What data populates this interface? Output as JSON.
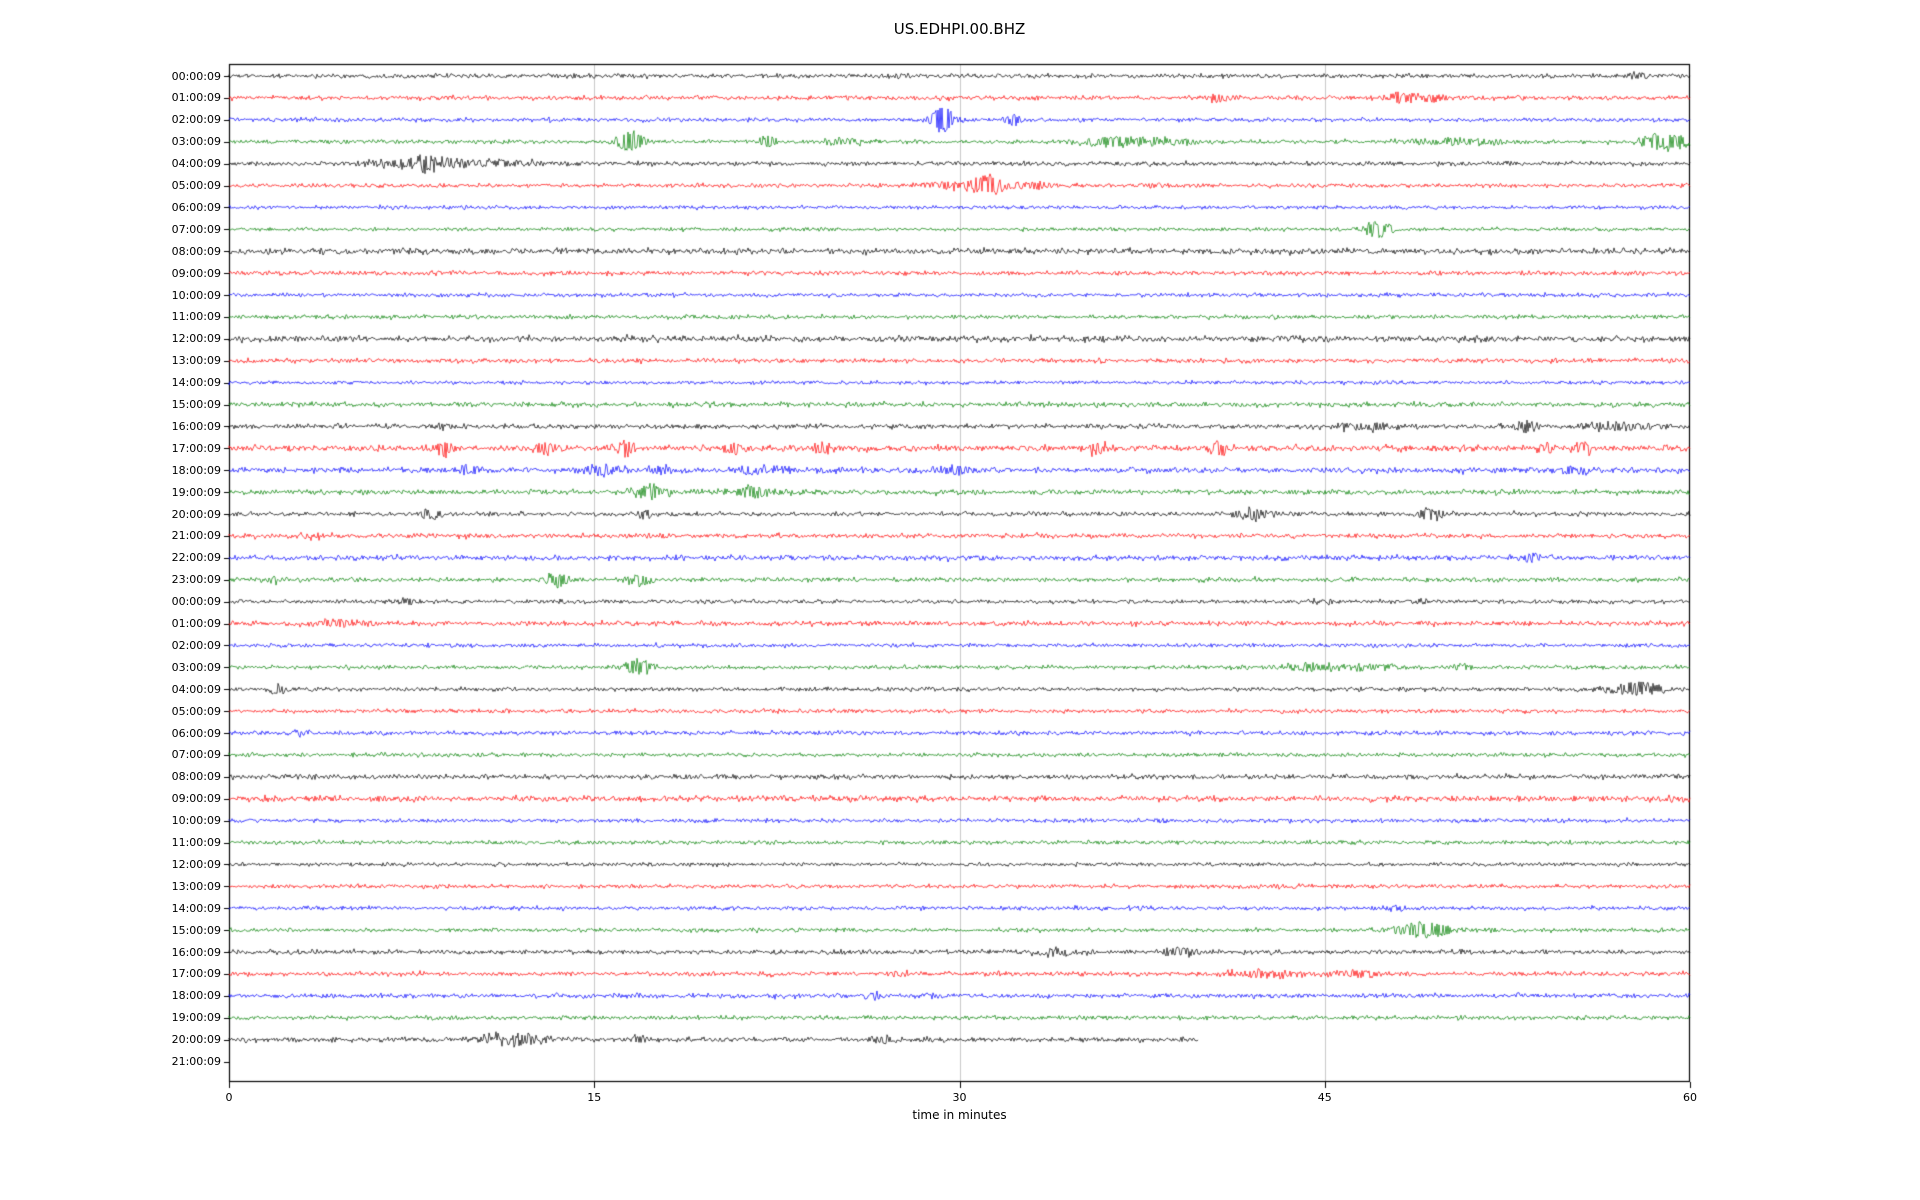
{
  "title": "US.EDHPI.00.BHZ",
  "chart_data": {
    "type": "line",
    "subtype": "seismogram-helicorder",
    "title": "US.EDHPI.00.BHZ",
    "xlabel": "time in minutes",
    "x_ticks": [
      "0",
      "15",
      "30",
      "45",
      "60"
    ],
    "x_tick_minutes": [
      0,
      15,
      30,
      45,
      60
    ],
    "x_range_minutes": [
      0,
      60
    ],
    "grid_x_minutes": [
      15,
      30,
      45
    ],
    "grid_color": "#c8c8c8",
    "palette": {
      "black": "#000000",
      "red": "#ff0000",
      "blue": "#0000ff",
      "green": "#008000"
    },
    "note": "Each row is one hour of continuous waveform; events listed as [minute, amplitude_px, width_minutes]",
    "rows": [
      {
        "label": "00:00:09",
        "color": "black",
        "noise": 1.1,
        "end": 60,
        "events": [
          [
            27.5,
            2.5,
            0.5
          ],
          [
            57.8,
            4,
            0.3
          ]
        ]
      },
      {
        "label": "01:00:09",
        "color": "red",
        "noise": 1.1,
        "end": 60,
        "events": [
          [
            40.6,
            3.5,
            0.5
          ],
          [
            48.3,
            5,
            0.7
          ],
          [
            49.6,
            4,
            0.4
          ]
        ]
      },
      {
        "label": "02:00:09",
        "color": "blue",
        "noise": 1.0,
        "end": 60,
        "events": [
          [
            29.3,
            13,
            0.35
          ],
          [
            32.2,
            6,
            0.3
          ]
        ]
      },
      {
        "label": "03:00:09",
        "color": "green",
        "noise": 1.0,
        "end": 60,
        "events": [
          [
            16.5,
            11,
            0.4
          ],
          [
            22.1,
            6,
            0.25
          ],
          [
            25.4,
            3.5,
            0.6
          ],
          [
            36.4,
            5,
            1.2
          ],
          [
            38.6,
            3.5,
            0.8
          ],
          [
            50.5,
            3.5,
            1.5
          ],
          [
            59.0,
            9,
            0.7
          ]
        ]
      },
      {
        "label": "04:00:09",
        "color": "black",
        "noise": 1.1,
        "end": 60,
        "events": [
          [
            7.0,
            4,
            1.2
          ],
          [
            8.1,
            7,
            0.4
          ],
          [
            9.0,
            4,
            0.8
          ],
          [
            10.8,
            3.5,
            1.5
          ]
        ]
      },
      {
        "label": "05:00:09",
        "color": "red",
        "noise": 1.0,
        "end": 60,
        "events": [
          [
            29.6,
            4,
            1.0
          ],
          [
            31.2,
            11,
            0.5
          ],
          [
            33.0,
            3.5,
            0.8
          ],
          [
            37.8,
            2.5,
            0.5
          ]
        ]
      },
      {
        "label": "06:00:09",
        "color": "blue",
        "noise": 0.9,
        "end": 60,
        "events": []
      },
      {
        "label": "07:00:09",
        "color": "green",
        "noise": 0.9,
        "end": 60,
        "events": [
          [
            47.2,
            10,
            0.4
          ]
        ]
      },
      {
        "label": "08:00:09",
        "color": "black",
        "noise": 1.5,
        "end": 60,
        "events": []
      },
      {
        "label": "09:00:09",
        "color": "red",
        "noise": 1.1,
        "end": 60,
        "events": []
      },
      {
        "label": "10:00:09",
        "color": "blue",
        "noise": 1.0,
        "end": 60,
        "events": []
      },
      {
        "label": "11:00:09",
        "color": "green",
        "noise": 1.0,
        "end": 60,
        "events": []
      },
      {
        "label": "12:00:09",
        "color": "black",
        "noise": 1.5,
        "end": 60,
        "events": []
      },
      {
        "label": "13:00:09",
        "color": "red",
        "noise": 1.1,
        "end": 60,
        "events": []
      },
      {
        "label": "14:00:09",
        "color": "blue",
        "noise": 0.9,
        "end": 60,
        "events": []
      },
      {
        "label": "15:00:09",
        "color": "green",
        "noise": 1.2,
        "end": 60,
        "events": []
      },
      {
        "label": "16:00:09",
        "color": "black",
        "noise": 1.2,
        "end": 60,
        "events": [
          [
            8.8,
            3,
            0.3
          ],
          [
            46.8,
            4,
            1.0
          ],
          [
            53.2,
            8,
            0.3
          ],
          [
            57.0,
            5,
            1.0
          ]
        ]
      },
      {
        "label": "17:00:09",
        "color": "red",
        "noise": 1.5,
        "end": 60,
        "events": [
          [
            8.8,
            9,
            0.3
          ],
          [
            12.9,
            6,
            0.4
          ],
          [
            16.3,
            8,
            0.3
          ],
          [
            20.7,
            7,
            0.3
          ],
          [
            24.4,
            6,
            0.3
          ],
          [
            35.6,
            7,
            0.3
          ],
          [
            40.7,
            6,
            0.3
          ],
          [
            54.1,
            7,
            0.3
          ],
          [
            55.6,
            6,
            0.3
          ]
        ]
      },
      {
        "label": "18:00:09",
        "color": "blue",
        "noise": 1.4,
        "end": 60,
        "events": [
          [
            9.8,
            5,
            0.4
          ],
          [
            15.3,
            5,
            0.6
          ],
          [
            17.7,
            4,
            0.5
          ],
          [
            21.5,
            5,
            0.5
          ],
          [
            22.6,
            4,
            0.4
          ],
          [
            29.8,
            5,
            0.5
          ],
          [
            55.3,
            4,
            0.4
          ]
        ]
      },
      {
        "label": "19:00:09",
        "color": "green",
        "noise": 1.3,
        "end": 60,
        "events": [
          [
            17.3,
            8,
            0.5
          ],
          [
            21.6,
            7,
            0.6
          ]
        ]
      },
      {
        "label": "20:00:09",
        "color": "black",
        "noise": 1.1,
        "end": 60,
        "events": [
          [
            8.3,
            5,
            0.4
          ],
          [
            17.1,
            4,
            0.3
          ],
          [
            42.0,
            6,
            0.6
          ],
          [
            49.3,
            6,
            0.4
          ]
        ]
      },
      {
        "label": "21:00:09",
        "color": "red",
        "noise": 1.2,
        "end": 60,
        "events": [
          [
            3.5,
            2.5,
            0.5
          ]
        ]
      },
      {
        "label": "22:00:09",
        "color": "blue",
        "noise": 1.3,
        "end": 60,
        "events": [
          [
            53.5,
            5,
            0.3
          ]
        ]
      },
      {
        "label": "23:00:09",
        "color": "green",
        "noise": 1.1,
        "end": 60,
        "events": [
          [
            2.0,
            2.5,
            0.4
          ],
          [
            13.5,
            7,
            0.4
          ],
          [
            16.9,
            6,
            0.4
          ]
        ]
      },
      {
        "label": "00:00:09",
        "color": "black",
        "noise": 1.0,
        "end": 60,
        "events": [
          [
            7.3,
            2.5,
            0.4
          ],
          [
            45.0,
            2.5,
            0.5
          ],
          [
            49.0,
            2.5,
            0.4
          ]
        ]
      },
      {
        "label": "01:00:09",
        "color": "red",
        "noise": 1.2,
        "end": 60,
        "events": [
          [
            4.5,
            3.5,
            1.0
          ]
        ]
      },
      {
        "label": "02:00:09",
        "color": "blue",
        "noise": 1.0,
        "end": 60,
        "events": []
      },
      {
        "label": "03:00:09",
        "color": "green",
        "noise": 1.0,
        "end": 60,
        "events": [
          [
            16.8,
            8,
            0.5
          ],
          [
            44.5,
            3.5,
            1.2
          ],
          [
            46.8,
            3.5,
            1.0
          ],
          [
            50.6,
            4,
            0.3
          ]
        ]
      },
      {
        "label": "04:00:09",
        "color": "black",
        "noise": 1.0,
        "end": 60,
        "events": [
          [
            1.9,
            6,
            0.25
          ],
          [
            56.6,
            3,
            0.5
          ],
          [
            58.0,
            7,
            0.7
          ]
        ]
      },
      {
        "label": "05:00:09",
        "color": "red",
        "noise": 1.0,
        "end": 60,
        "events": []
      },
      {
        "label": "06:00:09",
        "color": "blue",
        "noise": 1.1,
        "end": 60,
        "events": [
          [
            3.0,
            2.5,
            0.4
          ]
        ]
      },
      {
        "label": "07:00:09",
        "color": "green",
        "noise": 1.0,
        "end": 60,
        "events": []
      },
      {
        "label": "08:00:09",
        "color": "black",
        "noise": 1.2,
        "end": 60,
        "events": []
      },
      {
        "label": "09:00:09",
        "color": "red",
        "noise": 1.4,
        "end": 60,
        "events": []
      },
      {
        "label": "10:00:09",
        "color": "blue",
        "noise": 1.0,
        "end": 60,
        "events": []
      },
      {
        "label": "11:00:09",
        "color": "green",
        "noise": 1.0,
        "end": 60,
        "events": []
      },
      {
        "label": "12:00:09",
        "color": "black",
        "noise": 0.9,
        "end": 60,
        "events": []
      },
      {
        "label": "13:00:09",
        "color": "red",
        "noise": 1.0,
        "end": 60,
        "events": []
      },
      {
        "label": "14:00:09",
        "color": "blue",
        "noise": 1.0,
        "end": 60,
        "events": [
          [
            48.0,
            2.5,
            0.4
          ]
        ]
      },
      {
        "label": "15:00:09",
        "color": "green",
        "noise": 1.0,
        "end": 60,
        "events": [
          [
            49.0,
            8,
            0.9
          ]
        ]
      },
      {
        "label": "16:00:09",
        "color": "black",
        "noise": 1.1,
        "end": 60,
        "events": [
          [
            33.8,
            4,
            0.8
          ],
          [
            39.0,
            5,
            0.5
          ]
        ]
      },
      {
        "label": "17:00:09",
        "color": "red",
        "noise": 1.1,
        "end": 60,
        "events": [
          [
            27.5,
            2.5,
            0.4
          ],
          [
            42.5,
            3.5,
            1.5
          ],
          [
            46.5,
            3.5,
            0.8
          ]
        ]
      },
      {
        "label": "18:00:09",
        "color": "blue",
        "noise": 1.1,
        "end": 60,
        "events": [
          [
            16.8,
            2.5,
            0.3
          ],
          [
            26.5,
            3.5,
            0.3
          ],
          [
            28.8,
            3,
            0.3
          ]
        ]
      },
      {
        "label": "19:00:09",
        "color": "green",
        "noise": 1.0,
        "end": 60,
        "events": [
          [
            8.3,
            2.5,
            0.4
          ]
        ]
      },
      {
        "label": "20:00:09",
        "color": "black",
        "noise": 1.2,
        "end": 39.8,
        "events": [
          [
            11.0,
            4,
            0.8
          ],
          [
            12.0,
            5,
            1.0
          ],
          [
            16.8,
            3.5,
            0.4
          ],
          [
            26.8,
            3.5,
            0.4
          ]
        ]
      },
      {
        "label": "21:00:09",
        "color": "red",
        "noise": 0,
        "end": 0,
        "events": []
      }
    ]
  }
}
